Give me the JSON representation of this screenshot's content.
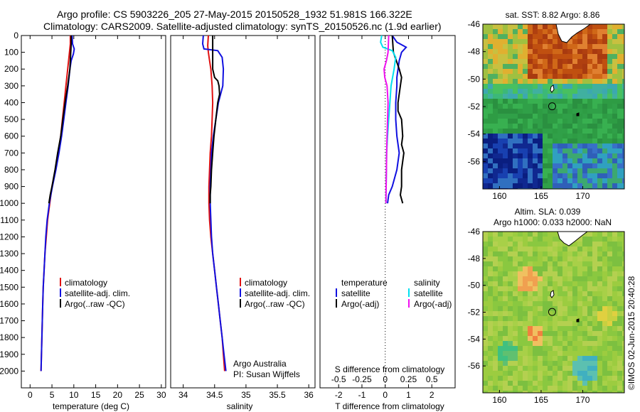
{
  "header": {
    "line1": "Argo profile: CS 5903226_205 27-May-2015 20150528_1932 51.981S 166.322E",
    "line2": "Climatology: CARS2009. Satellite-adjusted climatology: synTS_20150526.nc (1.9d earlier)"
  },
  "timestamp": "©IMOS 02-Jun-2015 20:40:28",
  "colors": {
    "climatology": "#e01010",
    "satellite": "#1010e0",
    "argo": "#000000",
    "satellite_salinity": "#00e0f0",
    "argo_salinity": "#f010f0",
    "frame": "#000000"
  },
  "chart_data": [
    {
      "type": "line",
      "panel": "temperature",
      "xlabel": "temperature (deg C)",
      "xlim": [
        -2,
        31
      ],
      "xticks": [
        "0",
        "5",
        "10",
        "15",
        "20",
        "25",
        "30"
      ],
      "ylim": [
        2100,
        0
      ],
      "yticks": [
        "0",
        "100",
        "200",
        "300",
        "400",
        "500",
        "600",
        "700",
        "800",
        "900",
        "1000",
        "1100",
        "1200",
        "1300",
        "1400",
        "1500",
        "1600",
        "1700",
        "1800",
        "1900",
        "2000"
      ],
      "legend_placement": "lower-left",
      "legend": [
        "climatology",
        "satellite-adj. clim.",
        "Argo(..raw -QC)"
      ],
      "series": [
        {
          "name": "climatology",
          "color_key": "climatology",
          "points": [
            [
              9.2,
              0
            ],
            [
              9.2,
              50
            ],
            [
              9.0,
              100
            ],
            [
              8.6,
              200
            ],
            [
              8.2,
              300
            ],
            [
              7.8,
              400
            ],
            [
              7.4,
              500
            ],
            [
              7.0,
              600
            ],
            [
              6.4,
              700
            ],
            [
              5.8,
              800
            ],
            [
              5.0,
              900
            ],
            [
              4.5,
              1000
            ],
            [
              4.0,
              1100
            ],
            [
              3.7,
              1200
            ],
            [
              3.4,
              1300
            ],
            [
              3.2,
              1400
            ],
            [
              3.0,
              1500
            ],
            [
              2.9,
              1600
            ],
            [
              2.8,
              1700
            ],
            [
              2.7,
              1800
            ],
            [
              2.6,
              1900
            ],
            [
              2.5,
              2000
            ]
          ]
        },
        {
          "name": "satellite-adj. clim.",
          "color_key": "satellite",
          "points": [
            [
              9.6,
              0
            ],
            [
              9.7,
              50
            ],
            [
              10.1,
              80
            ],
            [
              9.9,
              110
            ],
            [
              9.4,
              150
            ],
            [
              9.1,
              200
            ],
            [
              8.7,
              300
            ],
            [
              8.2,
              400
            ],
            [
              7.7,
              500
            ],
            [
              7.2,
              600
            ],
            [
              6.6,
              700
            ],
            [
              5.9,
              800
            ],
            [
              5.1,
              900
            ],
            [
              4.4,
              1000
            ],
            [
              3.9,
              1100
            ],
            [
              3.6,
              1200
            ],
            [
              3.4,
              1300
            ],
            [
              3.2,
              1400
            ],
            [
              3.0,
              1500
            ],
            [
              2.9,
              1600
            ],
            [
              2.8,
              1700
            ],
            [
              2.7,
              1800
            ],
            [
              2.6,
              1900
            ],
            [
              2.5,
              2000
            ]
          ]
        },
        {
          "name": "Argo(..raw -QC)",
          "color_key": "argo",
          "points": [
            [
              9.4,
              0
            ],
            [
              9.4,
              50
            ],
            [
              9.3,
              100
            ],
            [
              9.1,
              200
            ],
            [
              8.6,
              300
            ],
            [
              8.0,
              400
            ],
            [
              7.5,
              500
            ],
            [
              7.0,
              600
            ],
            [
              6.3,
              700
            ],
            [
              5.7,
              800
            ],
            [
              5.0,
              900
            ],
            [
              4.6,
              950
            ],
            [
              4.3,
              1000
            ]
          ]
        }
      ]
    },
    {
      "type": "line",
      "panel": "salinity",
      "xlabel": "salinity",
      "xlim": [
        33.8,
        36.1
      ],
      "xticks": [
        "34",
        "34.5",
        "35",
        "35.5",
        "36"
      ],
      "ylim": [
        2100,
        0
      ],
      "legend_placement": "lower-right",
      "legend": [
        "climatology",
        "satellite-adj. clim.",
        "Argo(..raw -QC)"
      ],
      "annotations": [
        "Argo Australia",
        "PI: Susan Wijffels"
      ],
      "series": [
        {
          "name": "climatology",
          "color_key": "climatology",
          "points": [
            [
              34.4,
              0
            ],
            [
              34.39,
              60
            ],
            [
              34.4,
              100
            ],
            [
              34.42,
              150
            ],
            [
              34.44,
              200
            ],
            [
              34.46,
              300
            ],
            [
              34.47,
              400
            ],
            [
              34.46,
              500
            ],
            [
              34.45,
              600
            ],
            [
              34.43,
              700
            ],
            [
              34.42,
              800
            ],
            [
              34.41,
              900
            ],
            [
              34.41,
              1000
            ],
            [
              34.42,
              1100
            ],
            [
              34.44,
              1200
            ],
            [
              34.47,
              1300
            ],
            [
              34.5,
              1400
            ],
            [
              34.53,
              1500
            ],
            [
              34.56,
              1600
            ],
            [
              34.59,
              1700
            ],
            [
              34.62,
              1800
            ],
            [
              34.64,
              1900
            ],
            [
              34.66,
              2000
            ]
          ]
        },
        {
          "name": "satellite-adj. clim.",
          "color_key": "satellite",
          "points": [
            [
              34.32,
              0
            ],
            [
              34.31,
              50
            ],
            [
              34.33,
              80
            ],
            [
              34.55,
              90
            ],
            [
              34.62,
              130
            ],
            [
              34.64,
              200
            ],
            [
              34.63,
              300
            ],
            [
              34.56,
              400
            ],
            [
              34.52,
              500
            ],
            [
              34.48,
              600
            ],
            [
              34.45,
              700
            ],
            [
              34.44,
              800
            ],
            [
              34.43,
              900
            ],
            [
              34.43,
              1000
            ],
            [
              34.44,
              1100
            ],
            [
              34.45,
              1200
            ],
            [
              34.47,
              1300
            ],
            [
              34.5,
              1400
            ],
            [
              34.53,
              1500
            ],
            [
              34.56,
              1600
            ],
            [
              34.59,
              1700
            ],
            [
              34.62,
              1800
            ],
            [
              34.65,
              1900
            ],
            [
              34.68,
              2000
            ]
          ]
        },
        {
          "name": "Argo(..raw -QC)",
          "color_key": "argo",
          "points": [
            [
              34.47,
              0
            ],
            [
              34.47,
              100
            ],
            [
              34.47,
              200
            ],
            [
              34.5,
              250
            ],
            [
              34.55,
              270
            ],
            [
              34.57,
              300
            ],
            [
              34.58,
              350
            ],
            [
              34.55,
              400
            ],
            [
              34.52,
              500
            ],
            [
              34.49,
              600
            ],
            [
              34.47,
              700
            ],
            [
              34.45,
              800
            ],
            [
              34.44,
              900
            ],
            [
              34.43,
              950
            ],
            [
              34.43,
              1000
            ]
          ]
        }
      ]
    },
    {
      "type": "line",
      "panel": "difference",
      "xlabel_bottom": "T difference from climatology",
      "xlabel_top": "S difference from climatology",
      "xlim": [
        -2.8,
        3
      ],
      "xticks_bottom": [
        "-2",
        "-1",
        "0",
        "1",
        "2"
      ],
      "xticks_top": [
        "-0.5",
        "-0.25",
        "0",
        "0.25",
        "0.5"
      ],
      "ylim": [
        2100,
        0
      ],
      "zero_line": "dotted",
      "legend_placement": "lower-center",
      "legend_headers": [
        "temperature",
        "salinity"
      ],
      "legend": [
        "satellite",
        "Argo(-adj)",
        "satellite",
        "Argo(-adj)"
      ],
      "series": [
        {
          "name": "satellite",
          "group": "temperature",
          "color_key": "satellite",
          "points": [
            [
              0.3,
              0
            ],
            [
              0.5,
              40
            ],
            [
              0.9,
              70
            ],
            [
              0.7,
              100
            ],
            [
              0.6,
              150
            ],
            [
              0.5,
              250
            ],
            [
              0.5,
              300
            ],
            [
              0.45,
              400
            ],
            [
              0.45,
              500
            ],
            [
              0.5,
              600
            ],
            [
              0.6,
              700
            ],
            [
              0.5,
              800
            ],
            [
              0.3,
              900
            ],
            [
              0.15,
              950
            ],
            [
              0.1,
              1000
            ]
          ]
        },
        {
          "name": "Argo(-adj)",
          "group": "temperature",
          "color_key": "argo",
          "points": [
            [
              0.3,
              0
            ],
            [
              0.35,
              100
            ],
            [
              0.6,
              200
            ],
            [
              0.7,
              250
            ],
            [
              0.65,
              300
            ],
            [
              0.55,
              400
            ],
            [
              0.55,
              450
            ],
            [
              0.7,
              500
            ],
            [
              0.75,
              600
            ],
            [
              0.7,
              650
            ],
            [
              0.8,
              700
            ],
            [
              0.7,
              800
            ],
            [
              0.7,
              900
            ],
            [
              0.65,
              950
            ],
            [
              0.75,
              1000
            ]
          ]
        },
        {
          "name": "satellite",
          "group": "salinity",
          "color_key": "satellite_salinity",
          "points": [
            [
              -0.15,
              0
            ],
            [
              -0.2,
              40
            ],
            [
              -0.1,
              70
            ],
            [
              0.3,
              90
            ],
            [
              0.45,
              130
            ],
            [
              0.38,
              200
            ],
            [
              0.25,
              300
            ],
            [
              0.2,
              400
            ],
            [
              0.15,
              500
            ],
            [
              0.1,
              600
            ],
            [
              0.06,
              700
            ],
            [
              0.05,
              800
            ],
            [
              0.04,
              900
            ],
            [
              0.03,
              1000
            ]
          ]
        },
        {
          "name": "Argo(-adj)",
          "group": "salinity",
          "color_key": "argo_salinity",
          "points": [
            [
              0.15,
              0
            ],
            [
              0.12,
              100
            ],
            [
              0.05,
              150
            ],
            [
              -0.05,
              200
            ],
            [
              -0.02,
              250
            ],
            [
              0.08,
              300
            ],
            [
              0.12,
              400
            ],
            [
              0.1,
              500
            ],
            [
              0.08,
              600
            ],
            [
              0.06,
              700
            ],
            [
              0.05,
              800
            ],
            [
              0.04,
              900
            ],
            [
              0.03,
              1000
            ]
          ]
        }
      ]
    },
    {
      "type": "heatmap",
      "panel": "sst_map",
      "title": "sat. SST: 8.82 Argo: 8.86",
      "xlim": [
        158,
        175
      ],
      "ylim": [
        -58,
        -46
      ],
      "xticks": [
        "160",
        "165",
        "170"
      ],
      "yticks": [
        "-46",
        "-48",
        "-50",
        "-52",
        "-54",
        "-56"
      ],
      "marker": {
        "lon": 166.322,
        "lat": -51.981
      }
    },
    {
      "type": "heatmap",
      "panel": "sla_map",
      "title": [
        "Altim. SLA: 0.039",
        "Argo h1000: 0.033 h2000: NaN"
      ],
      "xlim": [
        158,
        175
      ],
      "ylim": [
        -58,
        -46
      ],
      "xticks": [
        "160",
        "165",
        "170"
      ],
      "yticks": [
        "-46",
        "-48",
        "-50",
        "-52",
        "-54",
        "-56"
      ],
      "marker": {
        "lon": 166.322,
        "lat": -51.981
      }
    }
  ]
}
